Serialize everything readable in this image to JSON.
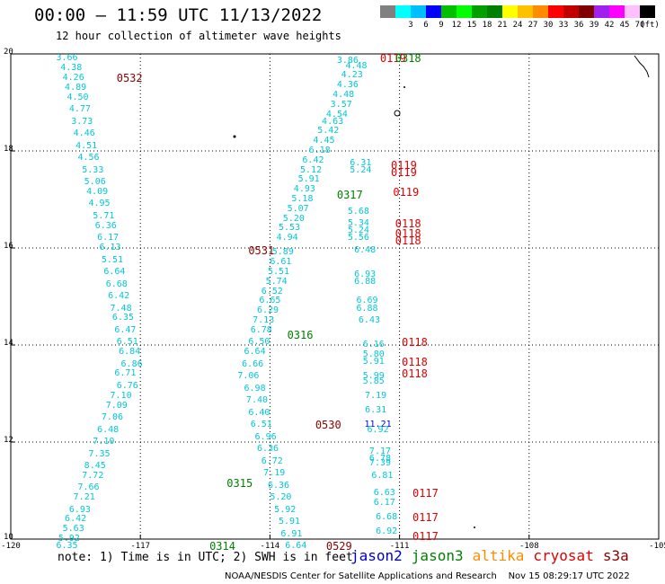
{
  "header": {
    "title": "00:00 – 11:59 UTC 11/13/2022",
    "subtitle": "12 hour collection of altimeter wave heights"
  },
  "legend": {
    "unit_label": "(ft)",
    "swatches": [
      {
        "color": "#808080",
        "label": ""
      },
      {
        "color": "#00ffff",
        "label": "3"
      },
      {
        "color": "#00bfff",
        "label": "6"
      },
      {
        "color": "#0000ff",
        "label": "9"
      },
      {
        "color": "#00c000",
        "label": "12"
      },
      {
        "color": "#00ff00",
        "label": "15"
      },
      {
        "color": "#00a000",
        "label": "18"
      },
      {
        "color": "#008000",
        "label": "21"
      },
      {
        "color": "#ffff00",
        "label": "24"
      },
      {
        "color": "#ffc000",
        "label": "27"
      },
      {
        "color": "#ff8c00",
        "label": "30"
      },
      {
        "color": "#ff0000",
        "label": "33"
      },
      {
        "color": "#c00000",
        "label": "36"
      },
      {
        "color": "#800000",
        "label": "39"
      },
      {
        "color": "#a020f0",
        "label": "42"
      },
      {
        "color": "#ff00ff",
        "label": "45"
      },
      {
        "color": "#ffc0ff",
        "label": "70"
      },
      {
        "color": "#000000",
        "label": ""
      }
    ]
  },
  "map": {
    "lat_labels": [
      "20",
      "18",
      "16",
      "14",
      "12",
      "10"
    ],
    "lon_labels": [
      "-120",
      "-117",
      "-114",
      "-111",
      "-108",
      "-105"
    ]
  },
  "points": [
    {
      "lon": -118.7,
      "lat": 19.9,
      "text": "3.66",
      "color": "#00c8d8"
    },
    {
      "lon": -118.6,
      "lat": 19.7,
      "text": "4.38",
      "color": "#00c8d8"
    },
    {
      "lon": -118.55,
      "lat": 19.5,
      "text": "4.26",
      "color": "#00c8d8"
    },
    {
      "lon": -118.5,
      "lat": 19.3,
      "text": "4.89",
      "color": "#00c8d8"
    },
    {
      "lon": -118.45,
      "lat": 19.1,
      "text": "4.50",
      "color": "#00c8d8"
    },
    {
      "lon": -118.4,
      "lat": 18.85,
      "text": "4.77",
      "color": "#00c8d8"
    },
    {
      "lon": -118.35,
      "lat": 18.6,
      "text": "3.73",
      "color": "#00c8d8"
    },
    {
      "lon": -118.3,
      "lat": 18.35,
      "text": "4.46",
      "color": "#00c8d8"
    },
    {
      "lon": -118.25,
      "lat": 18.1,
      "text": "4.51",
      "color": "#00c8d8"
    },
    {
      "lon": -118.2,
      "lat": 17.85,
      "text": "4.56",
      "color": "#00c8d8"
    },
    {
      "lon": -118.1,
      "lat": 17.6,
      "text": "5.33",
      "color": "#00c8d8"
    },
    {
      "lon": -118.05,
      "lat": 17.35,
      "text": "5.06",
      "color": "#00c8d8"
    },
    {
      "lon": -118.0,
      "lat": 17.15,
      "text": "4.09",
      "color": "#00c8d8"
    },
    {
      "lon": -117.95,
      "lat": 16.9,
      "text": "4.95",
      "color": "#00c8d8"
    },
    {
      "lon": -117.85,
      "lat": 16.65,
      "text": "5.71",
      "color": "#00c8d8"
    },
    {
      "lon": -117.8,
      "lat": 16.45,
      "text": "6.36",
      "color": "#00c8d8"
    },
    {
      "lon": -117.75,
      "lat": 16.2,
      "text": "6.17",
      "color": "#00c8d8"
    },
    {
      "lon": -117.7,
      "lat": 16.0,
      "text": "6.13",
      "color": "#00c8d8"
    },
    {
      "lon": -117.65,
      "lat": 15.75,
      "text": "5.51",
      "color": "#00c8d8"
    },
    {
      "lon": -117.6,
      "lat": 15.5,
      "text": "6.64",
      "color": "#00c8d8"
    },
    {
      "lon": -117.55,
      "lat": 15.25,
      "text": "6.68",
      "color": "#00c8d8"
    },
    {
      "lon": -117.5,
      "lat": 15.0,
      "text": "6.42",
      "color": "#00c8d8"
    },
    {
      "lon": -117.45,
      "lat": 14.75,
      "text": "7.48",
      "color": "#00c8d8"
    },
    {
      "lon": -117.4,
      "lat": 14.55,
      "text": "6.35",
      "color": "#00c8d8"
    },
    {
      "lon": -117.35,
      "lat": 14.3,
      "text": "6.47",
      "color": "#00c8d8"
    },
    {
      "lon": -117.3,
      "lat": 14.05,
      "text": "6.51",
      "color": "#00c8d8"
    },
    {
      "lon": -117.25,
      "lat": 13.85,
      "text": "6.84",
      "color": "#00c8d8"
    },
    {
      "lon": -117.2,
      "lat": 13.6,
      "text": "6.86",
      "color": "#00c8d8"
    },
    {
      "lon": -117.35,
      "lat": 13.4,
      "text": "6.71",
      "color": "#00c8d8"
    },
    {
      "lon": -117.3,
      "lat": 13.15,
      "text": "6.76",
      "color": "#00c8d8"
    },
    {
      "lon": -117.45,
      "lat": 12.95,
      "text": "7.10",
      "color": "#00c8d8"
    },
    {
      "lon": -117.55,
      "lat": 12.75,
      "text": "7.09",
      "color": "#00c8d8"
    },
    {
      "lon": -117.65,
      "lat": 12.5,
      "text": "7.06",
      "color": "#00c8d8"
    },
    {
      "lon": -117.75,
      "lat": 12.25,
      "text": "6.48",
      "color": "#00c8d8"
    },
    {
      "lon": -117.85,
      "lat": 12.0,
      "text": "7.10",
      "color": "#00c8d8"
    },
    {
      "lon": -117.95,
      "lat": 11.75,
      "text": "7.35",
      "color": "#00c8d8"
    },
    {
      "lon": -118.05,
      "lat": 11.5,
      "text": "8.45",
      "color": "#00c8d8"
    },
    {
      "lon": -118.1,
      "lat": 11.3,
      "text": "7.72",
      "color": "#00c8d8"
    },
    {
      "lon": -118.2,
      "lat": 11.05,
      "text": "7.66",
      "color": "#00c8d8"
    },
    {
      "lon": -118.3,
      "lat": 10.85,
      "text": "7.21",
      "color": "#00c8d8"
    },
    {
      "lon": -118.4,
      "lat": 10.6,
      "text": "6.93",
      "color": "#00c8d8"
    },
    {
      "lon": -118.5,
      "lat": 10.4,
      "text": "6.42",
      "color": "#00c8d8"
    },
    {
      "lon": -118.55,
      "lat": 10.2,
      "text": "5.63",
      "color": "#00c8d8"
    },
    {
      "lon": -118.65,
      "lat": 10.0,
      "text": "5.92",
      "color": "#00c8d8"
    },
    {
      "lon": -118.7,
      "lat": 9.85,
      "text": "6.35",
      "color": "#00c8d8"
    },
    {
      "lon": -112.2,
      "lat": 19.85,
      "text": "3.86",
      "color": "#00c8d8"
    },
    {
      "lon": -112.0,
      "lat": 19.75,
      "text": "4.48",
      "color": "#00c8d8"
    },
    {
      "lon": -112.1,
      "lat": 19.55,
      "text": "4.23",
      "color": "#00c8d8"
    },
    {
      "lon": -112.2,
      "lat": 19.35,
      "text": "4.36",
      "color": "#00c8d8"
    },
    {
      "lon": -112.3,
      "lat": 19.15,
      "text": "4.48",
      "color": "#00c8d8"
    },
    {
      "lon": -112.35,
      "lat": 18.95,
      "text": "3.57",
      "color": "#00c8d8"
    },
    {
      "lon": -112.45,
      "lat": 18.75,
      "text": "4.54",
      "color": "#00c8d8"
    },
    {
      "lon": -112.55,
      "lat": 18.6,
      "text": "4.63",
      "color": "#00c8d8"
    },
    {
      "lon": -112.65,
      "lat": 18.4,
      "text": "5.42",
      "color": "#00c8d8"
    },
    {
      "lon": -112.75,
      "lat": 18.2,
      "text": "4.45",
      "color": "#00c8d8"
    },
    {
      "lon": -112.85,
      "lat": 18.0,
      "text": "6.18",
      "color": "#00c8d8"
    },
    {
      "lon": -113.0,
      "lat": 17.8,
      "text": "6.42",
      "color": "#00c8d8"
    },
    {
      "lon": -113.05,
      "lat": 17.6,
      "text": "5.12",
      "color": "#00c8d8"
    },
    {
      "lon": -113.1,
      "lat": 17.4,
      "text": "5.91",
      "color": "#00c8d8"
    },
    {
      "lon": -113.2,
      "lat": 17.2,
      "text": "4.93",
      "color": "#00c8d8"
    },
    {
      "lon": -113.25,
      "lat": 17.0,
      "text": "5.18",
      "color": "#00c8d8"
    },
    {
      "lon": -113.35,
      "lat": 16.8,
      "text": "5.07",
      "color": "#00c8d8"
    },
    {
      "lon": -113.45,
      "lat": 16.6,
      "text": "5.20",
      "color": "#00c8d8"
    },
    {
      "lon": -113.55,
      "lat": 16.4,
      "text": "5.53",
      "color": "#00c8d8"
    },
    {
      "lon": -113.6,
      "lat": 16.2,
      "text": "4.94",
      "color": "#00c8d8"
    },
    {
      "lon": -113.7,
      "lat": 15.9,
      "text": "5.89",
      "color": "#00c8d8"
    },
    {
      "lon": -113.75,
      "lat": 15.7,
      "text": "6.61",
      "color": "#00c8d8"
    },
    {
      "lon": -113.8,
      "lat": 15.5,
      "text": "5.51",
      "color": "#00c8d8"
    },
    {
      "lon": -113.85,
      "lat": 15.3,
      "text": "5.74",
      "color": "#00c8d8"
    },
    {
      "lon": -113.95,
      "lat": 15.1,
      "text": "6.52",
      "color": "#00c8d8"
    },
    {
      "lon": -114.0,
      "lat": 14.9,
      "text": "6.65",
      "color": "#00c8d8"
    },
    {
      "lon": -114.05,
      "lat": 14.7,
      "text": "6.29",
      "color": "#00c8d8"
    },
    {
      "lon": -114.15,
      "lat": 14.5,
      "text": "7.13",
      "color": "#00c8d8"
    },
    {
      "lon": -114.2,
      "lat": 14.3,
      "text": "6.78",
      "color": "#00c8d8"
    },
    {
      "lon": -114.25,
      "lat": 14.05,
      "text": "6.50",
      "color": "#00c8d8"
    },
    {
      "lon": -114.35,
      "lat": 13.85,
      "text": "6.64",
      "color": "#00c8d8"
    },
    {
      "lon": -114.4,
      "lat": 13.6,
      "text": "6.66",
      "color": "#00c8d8"
    },
    {
      "lon": -114.5,
      "lat": 13.35,
      "text": "7.06",
      "color": "#00c8d8"
    },
    {
      "lon": -114.35,
      "lat": 13.1,
      "text": "6.98",
      "color": "#00c8d8"
    },
    {
      "lon": -114.3,
      "lat": 12.85,
      "text": "7.40",
      "color": "#00c8d8"
    },
    {
      "lon": -114.25,
      "lat": 12.6,
      "text": "6.40",
      "color": "#00c8d8"
    },
    {
      "lon": -114.2,
      "lat": 12.35,
      "text": "6.51",
      "color": "#00c8d8"
    },
    {
      "lon": -114.1,
      "lat": 12.1,
      "text": "6.96",
      "color": "#00c8d8"
    },
    {
      "lon": -114.05,
      "lat": 11.85,
      "text": "6.36",
      "color": "#00c8d8"
    },
    {
      "lon": -113.95,
      "lat": 11.6,
      "text": "6.72",
      "color": "#00c8d8"
    },
    {
      "lon": -113.9,
      "lat": 11.35,
      "text": "7.19",
      "color": "#00c8d8"
    },
    {
      "lon": -113.8,
      "lat": 11.1,
      "text": "6.36",
      "color": "#00c8d8"
    },
    {
      "lon": -113.75,
      "lat": 10.85,
      "text": "5.20",
      "color": "#00c8d8"
    },
    {
      "lon": -113.65,
      "lat": 10.6,
      "text": "5.92",
      "color": "#00c8d8"
    },
    {
      "lon": -113.55,
      "lat": 10.35,
      "text": "5.91",
      "color": "#00c8d8"
    },
    {
      "lon": -113.5,
      "lat": 10.1,
      "text": "6.91",
      "color": "#00c8d8"
    },
    {
      "lon": -113.4,
      "lat": 9.85,
      "text": "6.64",
      "color": "#00c8d8"
    },
    {
      "lon": -111.9,
      "lat": 17.75,
      "text": "6.31",
      "color": "#00c8d8"
    },
    {
      "lon": -111.9,
      "lat": 17.6,
      "text": "5.24",
      "color": "#00c8d8"
    },
    {
      "lon": -111.95,
      "lat": 16.75,
      "text": "5.68",
      "color": "#00c8d8"
    },
    {
      "lon": -111.95,
      "lat": 16.5,
      "text": "5.34",
      "color": "#00c8d8"
    },
    {
      "lon": -111.95,
      "lat": 16.35,
      "text": "5.24",
      "color": "#00c8d8"
    },
    {
      "lon": -111.95,
      "lat": 16.2,
      "text": "5.56",
      "color": "#00c8d8"
    },
    {
      "lon": -111.8,
      "lat": 15.95,
      "text": "6.48",
      "color": "#00c8d8"
    },
    {
      "lon": -111.8,
      "lat": 15.45,
      "text": "6.93",
      "color": "#00c8d8"
    },
    {
      "lon": -111.8,
      "lat": 15.3,
      "text": "6.88",
      "color": "#00c8d8"
    },
    {
      "lon": -111.75,
      "lat": 14.9,
      "text": "6.69",
      "color": "#00c8d8"
    },
    {
      "lon": -111.75,
      "lat": 14.75,
      "text": "6.88",
      "color": "#00c8d8"
    },
    {
      "lon": -111.7,
      "lat": 14.5,
      "text": "6.43",
      "color": "#00c8d8"
    },
    {
      "lon": -111.6,
      "lat": 14.0,
      "text": "6.16",
      "color": "#00c8d8"
    },
    {
      "lon": -111.6,
      "lat": 13.8,
      "text": "5.80",
      "color": "#00c8d8"
    },
    {
      "lon": -111.6,
      "lat": 13.65,
      "text": "5.91",
      "color": "#00c8d8"
    },
    {
      "lon": -111.6,
      "lat": 13.35,
      "text": "5.99",
      "color": "#00c8d8"
    },
    {
      "lon": -111.6,
      "lat": 13.25,
      "text": "5.85",
      "color": "#00c8d8"
    },
    {
      "lon": -111.55,
      "lat": 12.95,
      "text": "7.19",
      "color": "#00c8d8"
    },
    {
      "lon": -111.55,
      "lat": 12.65,
      "text": "6.31",
      "color": "#00c8d8"
    },
    {
      "lon": -111.5,
      "lat": 12.35,
      "text": "11.21",
      "color": "#0000ff"
    },
    {
      "lon": -111.5,
      "lat": 12.25,
      "text": "6.92",
      "color": "#00c8d8"
    },
    {
      "lon": -111.45,
      "lat": 11.8,
      "text": "7.17",
      "color": "#00c8d8"
    },
    {
      "lon": -111.45,
      "lat": 11.65,
      "text": "6.78",
      "color": "#00c8d8"
    },
    {
      "lon": -111.45,
      "lat": 11.55,
      "text": "7.39",
      "color": "#00c8d8"
    },
    {
      "lon": -111.4,
      "lat": 11.3,
      "text": "6.81",
      "color": "#00c8d8"
    },
    {
      "lon": -111.35,
      "lat": 10.95,
      "text": "6.63",
      "color": "#00c8d8"
    },
    {
      "lon": -111.35,
      "lat": 10.75,
      "text": "6.17",
      "color": "#00c8d8"
    },
    {
      "lon": -111.3,
      "lat": 10.45,
      "text": "6.68",
      "color": "#00c8d8"
    },
    {
      "lon": -111.3,
      "lat": 10.15,
      "text": "6.92",
      "color": "#00c8d8"
    }
  ],
  "passes": [
    {
      "lon": -117.25,
      "lat": 19.5,
      "text": "0532",
      "color": "#8b0000"
    },
    {
      "lon": -114.2,
      "lat": 15.95,
      "text": "0531",
      "color": "#8b0000"
    },
    {
      "lon": -112.65,
      "lat": 12.35,
      "text": "0530",
      "color": "#8b0000"
    },
    {
      "lon": -112.4,
      "lat": 9.85,
      "text": "0529",
      "color": "#8b0000"
    },
    {
      "lon": -111.15,
      "lat": 19.9,
      "text": "0119",
      "color": "#e00000"
    },
    {
      "lon": -110.9,
      "lat": 17.7,
      "text": "0119",
      "color": "#e00000"
    },
    {
      "lon": -110.9,
      "lat": 17.55,
      "text": "0119",
      "color": "#e00000"
    },
    {
      "lon": -110.85,
      "lat": 17.15,
      "text": "0119",
      "color": "#e00000"
    },
    {
      "lon": -110.8,
      "lat": 16.5,
      "text": "0118",
      "color": "#e00000"
    },
    {
      "lon": -110.8,
      "lat": 16.3,
      "text": "0118",
      "color": "#e00000"
    },
    {
      "lon": -110.8,
      "lat": 16.15,
      "text": "0118",
      "color": "#e00000"
    },
    {
      "lon": -110.65,
      "lat": 14.05,
      "text": "0118",
      "color": "#e00000"
    },
    {
      "lon": -110.65,
      "lat": 13.65,
      "text": "0118",
      "color": "#e00000"
    },
    {
      "lon": -110.65,
      "lat": 13.4,
      "text": "0118",
      "color": "#e00000"
    },
    {
      "lon": -110.4,
      "lat": 10.95,
      "text": "0117",
      "color": "#e00000"
    },
    {
      "lon": -110.4,
      "lat": 10.45,
      "text": "0117",
      "color": "#e00000"
    },
    {
      "lon": -110.4,
      "lat": 10.05,
      "text": "0117",
      "color": "#e00000"
    },
    {
      "lon": -110.8,
      "lat": 19.9,
      "text": "0318",
      "color": "#008000"
    },
    {
      "lon": -112.15,
      "lat": 17.1,
      "text": "0317",
      "color": "#008000"
    },
    {
      "lon": -113.3,
      "lat": 14.2,
      "text": "0316",
      "color": "#008000"
    },
    {
      "lon": -114.7,
      "lat": 11.15,
      "text": "0315",
      "color": "#008000"
    },
    {
      "lon": -115.1,
      "lat": 9.85,
      "text": "0314",
      "color": "#008000"
    }
  ],
  "note": "note: 1) Time is in UTC; 2) SWH is in feet",
  "satellites": [
    {
      "name": "jason2",
      "color": "#0000c0"
    },
    {
      "name": "jason3",
      "color": "#008000"
    },
    {
      "name": "altika",
      "color": "#ff8c00"
    },
    {
      "name": "cryosat",
      "color": "#e00000"
    },
    {
      "name": "s3a",
      "color": "#8b0000"
    }
  ],
  "footer": "NOAA/NESDIS Center for Satellite Applications and Research    Nov 15 08:29:17 UTC 2022"
}
